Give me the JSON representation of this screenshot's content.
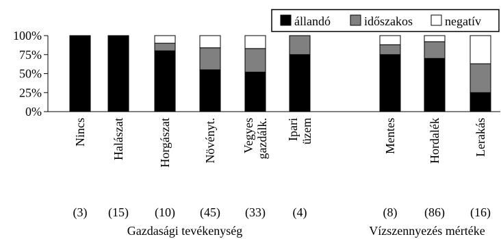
{
  "chart_data": {
    "type": "bar",
    "stacked": true,
    "percent": true,
    "title": "",
    "xlabel": "",
    "ylabel": "",
    "ylim": [
      0,
      100
    ],
    "yticks": [
      "0%",
      "25%",
      "50%",
      "75%",
      "100%"
    ],
    "grid": false,
    "legend_position": "top-right",
    "categories": [
      "Nincs",
      "Halászat",
      "Horgászat",
      "Növényt.",
      "Vegyes gazdálk.",
      "Ipari üzem",
      "Mentes",
      "Hordalék",
      "Lerakás"
    ],
    "counts": [
      "(3)",
      "(15)",
      "(10)",
      "(45)",
      "(33)",
      "(4)",
      "(8)",
      "(86)",
      "(16)"
    ],
    "groups": [
      {
        "label": "Gazdasági tevékenység",
        "categories": [
          "Nincs",
          "Halászat",
          "Horgászat",
          "Növényt.",
          "Vegyes gazdálk.",
          "Ipari üzem"
        ]
      },
      {
        "label": "Vízszennyezés mértéke",
        "categories": [
          "Mentes",
          "Hordalék",
          "Lerakás"
        ]
      }
    ],
    "series": [
      {
        "name": "állandó",
        "color": "#000000",
        "values": [
          100,
          100,
          80,
          55,
          52,
          75,
          75,
          70,
          25
        ]
      },
      {
        "name": "időszakos",
        "color": "#808080",
        "values": [
          0,
          0,
          10,
          29,
          31,
          25,
          13,
          22,
          38
        ]
      },
      {
        "name": "negatív",
        "color": "#ffffff",
        "values": [
          0,
          0,
          10,
          16,
          17,
          0,
          12,
          8,
          37
        ]
      }
    ]
  }
}
